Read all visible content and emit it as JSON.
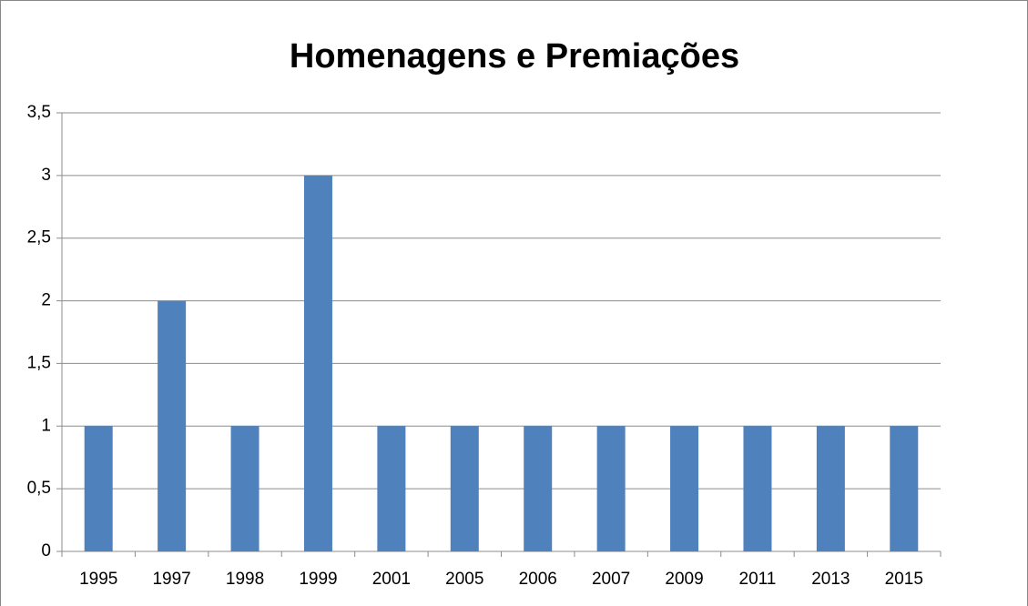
{
  "chart_data": {
    "type": "bar",
    "title": "Homenagens e Premiações",
    "categories": [
      "1995",
      "1997",
      "1998",
      "1999",
      "2001",
      "2005",
      "2006",
      "2007",
      "2009",
      "2011",
      "2013",
      "2015"
    ],
    "values": [
      1,
      2,
      1,
      3,
      1,
      1,
      1,
      1,
      1,
      1,
      1,
      1
    ],
    "color": "#4f81bd",
    "ylim": [
      0,
      3.5
    ],
    "yticks": [
      0,
      {
        "value": 0.5,
        "label": "0,5"
      },
      1,
      {
        "value": 1.5,
        "label": "1,5"
      },
      2,
      {
        "value": 2.5,
        "label": "2,5"
      },
      3,
      {
        "value": 3.5,
        "label": "3,5"
      }
    ],
    "grid": true
  }
}
